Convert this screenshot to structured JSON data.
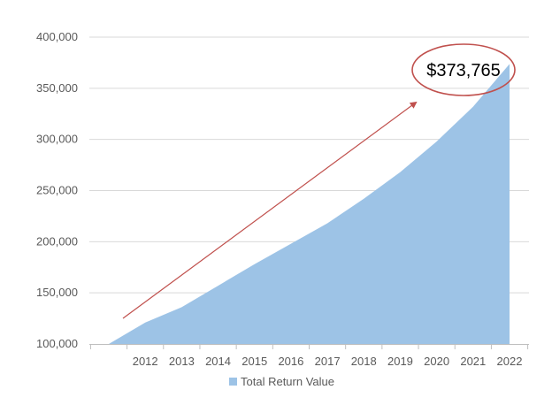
{
  "chart_data": {
    "type": "area",
    "x": [
      "2011",
      "2012",
      "2013",
      "2014",
      "2015",
      "2016",
      "2017",
      "2018",
      "2019",
      "2020",
      "2021",
      "2022"
    ],
    "x_tick_labels": [
      "2012",
      "2013",
      "2014",
      "2015",
      "2016",
      "2017",
      "2018",
      "2019",
      "2020",
      "2021",
      "2022"
    ],
    "series": [
      {
        "name": "Total Return Value",
        "values": [
          100000,
          121000,
          136000,
          157000,
          178000,
          198000,
          218000,
          242000,
          268000,
          298000,
          332000,
          373765
        ],
        "color": "#9dc3e6"
      }
    ],
    "y_ticks": [
      100000,
      150000,
      200000,
      250000,
      300000,
      350000,
      400000
    ],
    "y_tick_labels": [
      "100,000",
      "150,000",
      "200,000",
      "250,000",
      "300,000",
      "350,000",
      "400,000"
    ],
    "ylim": [
      100000,
      400000
    ],
    "grid": true,
    "legend_position": "bottom",
    "annotation": {
      "text": "$373,765",
      "circle_color": "#c0504d",
      "arrow_color": "#c0504d"
    }
  }
}
